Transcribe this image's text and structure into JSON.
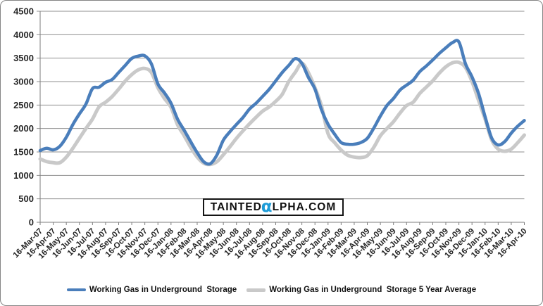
{
  "window": {
    "background": "#ffffff",
    "frame_border_color": "#848484",
    "gridline_color": "#8f8f8f",
    "axis_color": "#7d7d7d",
    "tick_label_color": "#262626"
  },
  "chart_data": {
    "type": "line",
    "title": "",
    "xlabel": "",
    "ylabel": "",
    "ylim": [
      0,
      4500
    ],
    "yticks": [
      0,
      500,
      1000,
      1500,
      2000,
      2500,
      3000,
      3500,
      4000,
      4500
    ],
    "grid": true,
    "legend_position": "bottom",
    "points_per_tick": 2,
    "x_tick_labels": [
      "16-Mar-07",
      "16-Apr-07",
      "16-May-07",
      "16-Jun-07",
      "16-Jul-07",
      "16-Aug-07",
      "16-Sep-07",
      "16-Oct-07",
      "16-Nov-07",
      "16-Dec-07",
      "16-Jan-08",
      "16-Feb-08",
      "16-Mar-08",
      "16-Apr-08",
      "16-May-08",
      "16-Jun-08",
      "16-Jul-08",
      "16-Aug-08",
      "16-Sep-08",
      "16-Oct-08",
      "16-Nov-08",
      "16-Dec-08",
      "16-Jan-09",
      "16-Feb-09",
      "16-Mar-09",
      "16-Apr-09",
      "16-May-09",
      "16-Jun-09",
      "16-Jul-09",
      "16-Aug-09",
      "16-Sep-09",
      "16-Oct-09",
      "16-Nov-09",
      "16-Dec-09",
      "16-Jan-10",
      "16-Feb-10",
      "16-Mar-10",
      "16-Apr-10"
    ],
    "series": [
      {
        "name": "Working Gas in Underground  Storage",
        "color": "#4a7ebb",
        "stroke_width": 4.5,
        "values": [
          1530,
          1580,
          1545,
          1620,
          1815,
          2085,
          2310,
          2520,
          2850,
          2880,
          2985,
          3045,
          3195,
          3345,
          3495,
          3545,
          3550,
          3380,
          2950,
          2760,
          2540,
          2200,
          1965,
          1720,
          1485,
          1290,
          1250,
          1430,
          1750,
          1930,
          2085,
          2235,
          2415,
          2540,
          2685,
          2835,
          3015,
          3195,
          3345,
          3490,
          3390,
          3090,
          2840,
          2400,
          2090,
          1880,
          1700,
          1665,
          1665,
          1700,
          1790,
          2010,
          2265,
          2490,
          2640,
          2820,
          2925,
          3030,
          3210,
          3330,
          3460,
          3600,
          3720,
          3830,
          3845,
          3380,
          3100,
          2745,
          2250,
          1800,
          1650,
          1720,
          1900,
          2050,
          2170
        ]
      },
      {
        "name": "Working Gas in Underground  Storage 5 Year Average",
        "color": "#c9c9c9",
        "stroke_width": 5,
        "values": [
          1350,
          1295,
          1270,
          1270,
          1390,
          1580,
          1790,
          2000,
          2200,
          2460,
          2560,
          2680,
          2840,
          3010,
          3150,
          3250,
          3280,
          3195,
          2870,
          2640,
          2450,
          2080,
          1850,
          1600,
          1390,
          1260,
          1235,
          1290,
          1440,
          1610,
          1790,
          1950,
          2100,
          2240,
          2370,
          2460,
          2580,
          2730,
          3000,
          3200,
          3390,
          3190,
          2870,
          2480,
          1890,
          1700,
          1540,
          1430,
          1390,
          1380,
          1420,
          1600,
          1845,
          2000,
          2145,
          2330,
          2490,
          2560,
          2745,
          2880,
          3015,
          3180,
          3315,
          3400,
          3410,
          3300,
          3000,
          2600,
          2200,
          1760,
          1560,
          1515,
          1560,
          1700,
          1860
        ]
      }
    ]
  },
  "watermark": {
    "prefix": "TAINTED",
    "alpha_char": "α",
    "suffix": "LPHA.COM",
    "alpha_color": "#1e9cd8",
    "border_color": "#141414"
  }
}
